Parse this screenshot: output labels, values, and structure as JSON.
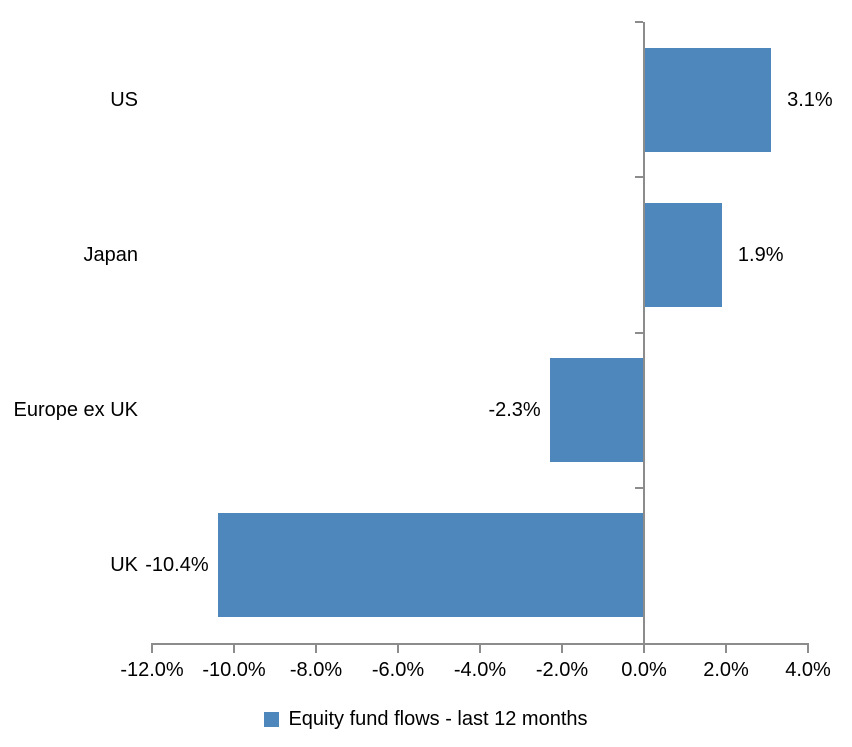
{
  "chart_data": {
    "type": "bar",
    "orientation": "horizontal",
    "title": "",
    "categories": [
      "US",
      "Japan",
      "Europe ex UK",
      "UK"
    ],
    "values": [
      3.1,
      1.9,
      -2.3,
      -10.4
    ],
    "data_labels": [
      "3.1%",
      "1.9%",
      "-2.3%",
      "-10.4%"
    ],
    "x_ticks": [
      -12,
      -10,
      -8,
      -6,
      -4,
      -2,
      0,
      2,
      4
    ],
    "x_tick_labels": [
      "-12.0%",
      "-10.0%",
      "-8.0%",
      "-6.0%",
      "-4.0%",
      "-2.0%",
      "0.0%",
      "2.0%",
      "4.0%"
    ],
    "xlim": [
      -12,
      4
    ],
    "grid": false,
    "legend": "Equity fund flows - last 12 months",
    "legend_position": "bottom",
    "bar_color": "#4D87BC",
    "axis_color": "#8C8C8C",
    "text_color": "#000000"
  }
}
